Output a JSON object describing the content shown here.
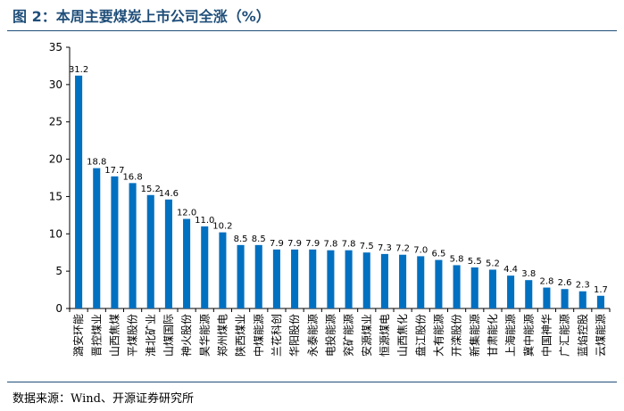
{
  "header": {
    "title": "图 2：本周主要煤炭上市公司全涨（%）"
  },
  "footer": {
    "source": "数据来源：Wind、开源证券研究所"
  },
  "colors": {
    "bar": "#0070c0",
    "axis": "#000000",
    "title": "#1f4e79"
  },
  "chart_data": {
    "type": "bar",
    "title": "",
    "xlabel": "",
    "ylabel": "",
    "ylim": [
      0,
      35
    ],
    "yticks": [
      0,
      5,
      10,
      15,
      20,
      25,
      30,
      35
    ],
    "grid": false,
    "categories": [
      "潞安环能",
      "晋控煤业",
      "山西焦煤",
      "平煤股份",
      "淮北矿业",
      "山煤国际",
      "神火股份",
      "昊华能源",
      "郑州煤电",
      "陕西煤业",
      "中煤能源",
      "兰花科创",
      "华阳股份",
      "永泰能源",
      "电投能源",
      "兖矿能源",
      "安源煤业",
      "恒源煤电",
      "山西焦化",
      "盘江股份",
      "大有能源",
      "开滦股份",
      "新集能源",
      "甘肃能化",
      "上海能源",
      "冀中能源",
      "中国神华",
      "广汇能源",
      "蓝焰控股",
      "云煤能源"
    ],
    "values": [
      31.2,
      18.8,
      17.7,
      16.8,
      15.2,
      14.6,
      12.0,
      11.0,
      10.2,
      8.5,
      8.5,
      7.9,
      7.9,
      7.9,
      7.8,
      7.8,
      7.5,
      7.3,
      7.2,
      7.0,
      6.5,
      5.8,
      5.5,
      5.2,
      4.4,
      3.8,
      2.8,
      2.6,
      2.3,
      1.7
    ],
    "value_labels": [
      "31.2",
      "18.8",
      "17.7",
      "16.8",
      "15.2",
      "14.6",
      "12.0",
      "11.0",
      "10.2",
      "8.5",
      "8.5",
      "7.9",
      "7.9",
      "7.9",
      "7.8",
      "7.8",
      "7.5",
      "7.3",
      "7.2",
      "7.0",
      "6.5",
      "5.8",
      "5.5",
      "5.2",
      "4.4",
      "3.8",
      "2.8",
      "2.6",
      "2.3",
      "1.7"
    ]
  }
}
